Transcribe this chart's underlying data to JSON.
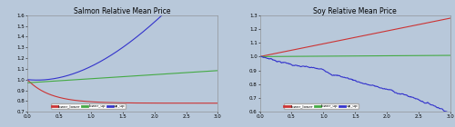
{
  "title_left": "Salmon Relative Mean Price",
  "title_right": "Soy Relative Mean Price",
  "bg_color": "#b8c8da",
  "fig_bg_color": "#b8c8da",
  "xlim": [
    0,
    3.0
  ],
  "ylim_left": [
    0.7,
    1.6
  ],
  "ylim_right": [
    0.6,
    1.3
  ],
  "xticks": [
    0,
    0.5,
    1.0,
    1.5,
    2.0,
    2.5,
    3.0
  ],
  "yticks_left": [
    0.7,
    0.8,
    0.9,
    1.0,
    1.1,
    1.2,
    1.3,
    1.4,
    1.5,
    1.6
  ],
  "yticks_right": [
    0.6,
    0.7,
    0.8,
    0.9,
    1.0,
    1.1,
    1.2,
    1.3
  ],
  "line_colors": [
    "#cc3333",
    "#44aa44",
    "#3333cc"
  ],
  "legend_labels": [
    "lower_lower",
    "lower_up",
    "up_up"
  ],
  "title_fontsize": 5.5,
  "tick_fontsize": 4.0,
  "legend_fontsize": 3.0,
  "linewidth": 0.8
}
